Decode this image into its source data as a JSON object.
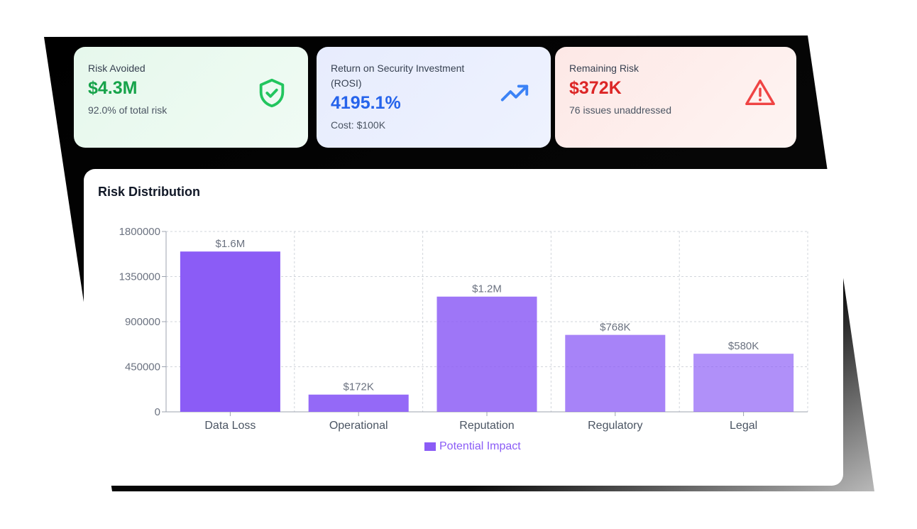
{
  "cards": [
    {
      "label": "Risk Avoided",
      "value": "$4.3M",
      "sub": "92.0% of total risk",
      "icon": "shield-check-icon",
      "color": "#16a34a"
    },
    {
      "label": "Return on Security Investment (ROSI)",
      "value": "4195.1%",
      "sub": "Cost: $100K",
      "icon": "trending-up-icon",
      "color": "#2563eb"
    },
    {
      "label": "Remaining Risk",
      "value": "$372K",
      "sub": "76 issues unaddressed",
      "icon": "warning-triangle-icon",
      "color": "#dc2626"
    }
  ],
  "chart_data": {
    "type": "bar",
    "title": "Risk Distribution",
    "categories": [
      "Data Loss",
      "Operational",
      "Reputation",
      "Regulatory",
      "Legal"
    ],
    "series": [
      {
        "name": "Potential Impact",
        "values": [
          1600000,
          172000,
          1150000,
          768000,
          580000
        ]
      }
    ],
    "data_labels": [
      "$1.6M",
      "$172K",
      "$1.2M",
      "$768K",
      "$580K"
    ],
    "ylim": [
      0,
      1800000
    ],
    "yticks": [
      "0",
      "450000",
      "900000",
      "1350000",
      "1800000"
    ],
    "grid": true,
    "legend": "bottom",
    "bar_color": "#8b5cf6"
  }
}
